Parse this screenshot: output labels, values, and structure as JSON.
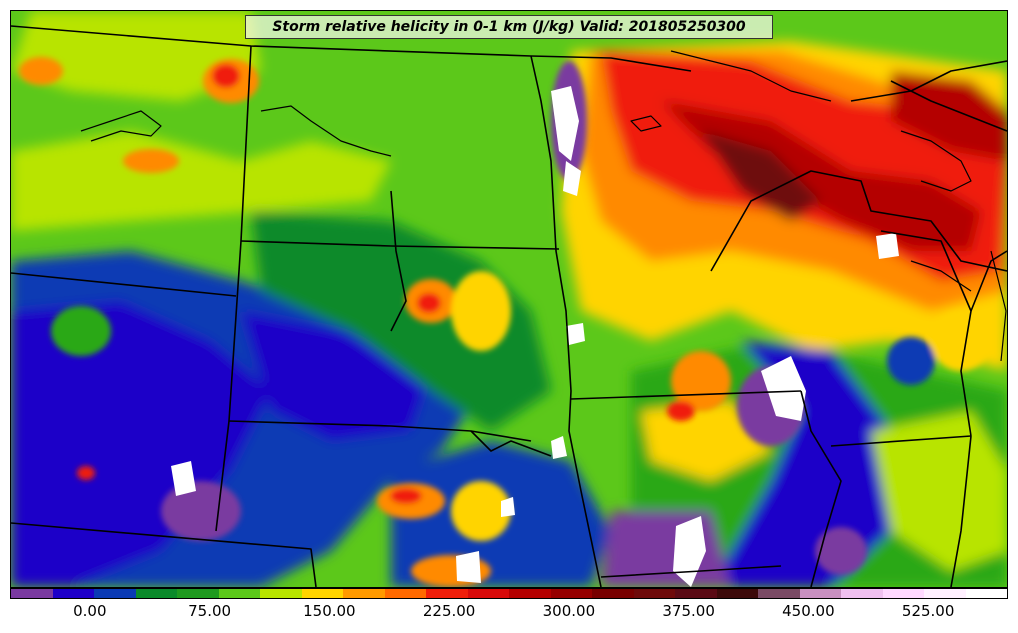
{
  "map": {
    "title": "Storm relative helicity in 0-1 km (J/kg) Valid: 201805250300",
    "fill_colors": {
      "deep_blue": "#1e00c8",
      "blue": "#0a3ab4",
      "dark_green": "#0a8a2a",
      "green": "#2aa816",
      "light_green": "#5cc81a",
      "yellow_green": "#b8e400",
      "yellow": "#ffd400",
      "orange": "#ff8a00",
      "red": "#f01e0a",
      "dark_red": "#b40000",
      "maroon": "#6e0a0a",
      "purple": "#7a3aa0",
      "white": "#ffffff"
    },
    "border_color": "#000000"
  },
  "colorbar": {
    "colors": [
      "#7a3aa0",
      "#1e00c8",
      "#0a3ab4",
      "#0a8a2a",
      "#1e9a1e",
      "#5cc81a",
      "#b8e400",
      "#ffd400",
      "#ff9a00",
      "#ff6a00",
      "#f01e0a",
      "#d80a0a",
      "#b40000",
      "#960000",
      "#780000",
      "#6e0a0a",
      "#5a0a14",
      "#3c0a0a",
      "#7a4a64",
      "#c890c0",
      "#f0c0f0",
      "#ffd8ff",
      "#fff0ff",
      "#ffffff"
    ],
    "ticks": [
      {
        "label": "0.00",
        "frac": 0.08
      },
      {
        "label": "75.00",
        "frac": 0.2
      },
      {
        "label": "150.00",
        "frac": 0.32
      },
      {
        "label": "225.00",
        "frac": 0.44
      },
      {
        "label": "300.00",
        "frac": 0.56
      },
      {
        "label": "375.00",
        "frac": 0.68
      },
      {
        "label": "450.00",
        "frac": 0.8
      },
      {
        "label": "525.00",
        "frac": 0.92
      }
    ]
  }
}
